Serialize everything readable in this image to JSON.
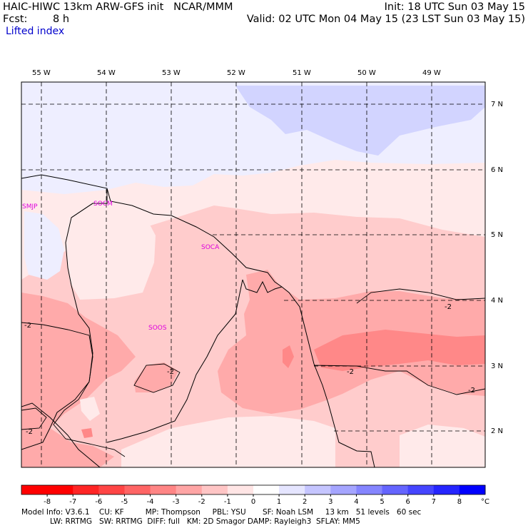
{
  "header": {
    "model_line": "HAIC-HIWC 13km ARW-GFS init   NCAR/MMM",
    "init": "Init: 18 UTC Sun 03 May 15",
    "fcst_label": "Fcst:",
    "fcst_value": "8 h",
    "valid": "Valid: 02 UTC Mon 04 May 15 (23 LST Sun 03 May 15)",
    "field": "Lifted index"
  },
  "map": {
    "lon_labels": [
      "55 W",
      "54 W",
      "53 W",
      "52 W",
      "51 W",
      "50 W",
      "49 W"
    ],
    "lat_labels": [
      "7 N",
      "6 N",
      "5 N",
      "4 N",
      "3 N",
      "2 N"
    ],
    "stations": [
      "SMJP",
      "SOCM",
      "SOCA",
      "SOOS"
    ],
    "contour_labels": [
      "-2",
      "-2",
      "-2",
      "-2",
      "-2",
      "-2"
    ],
    "colors": {
      "very_light_blue": "#eeeeff",
      "light_blue": "#d2d4ff",
      "very_light_pink": "#ffeaea",
      "light_pink": "#ffcccc",
      "pink": "#ffaaaa",
      "dark_pink": "#ff8888",
      "station": "#dd00dd"
    }
  },
  "colorbar": {
    "ticks": [
      "-8",
      "-7",
      "-6",
      "-5",
      "-4",
      "-3",
      "-2",
      "-1",
      "0",
      "1",
      "2",
      "3",
      "4",
      "5",
      "6",
      "7",
      "8"
    ],
    "unit": "°C",
    "colors": [
      "#ff0000",
      "#ff2525",
      "#ff4545",
      "#ff6565",
      "#ff8585",
      "#ffa5a5",
      "#ffc5c5",
      "#ffe5e5",
      "#ffffff",
      "#e5e5ff",
      "#c5c5ff",
      "#a5a5ff",
      "#8585ff",
      "#6565ff",
      "#4545ff",
      "#2525ff",
      "#0000ff"
    ]
  },
  "footer": {
    "line1": "Model Info: V3.6.1    CU: KF         MP: Thompson     PBL: YSU       SF: Noah LSM     13 km   51 levels   60 sec",
    "line2": "LW: RRTMG   SW: RRTMG  DIFF: full   KM: 2D Smagor DAMP: Rayleigh3  SFLAY: MM5"
  }
}
